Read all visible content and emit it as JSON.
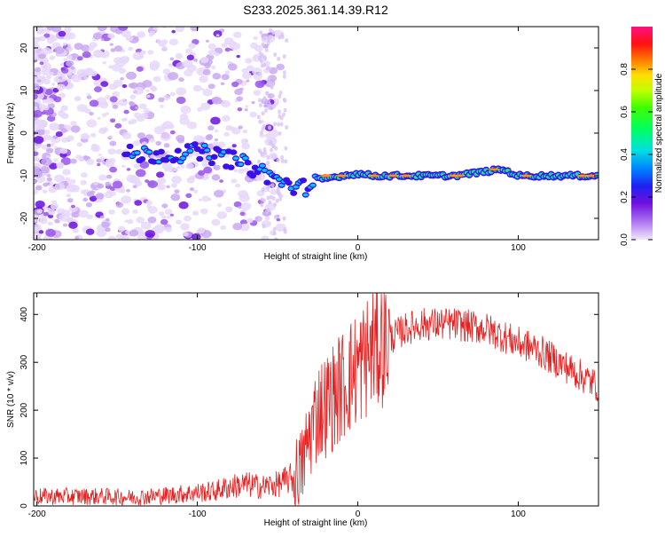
{
  "title": "S233.2025.361.14.39.R12",
  "colors": {
    "snr_line": "#e62020",
    "spec_low": "#d6c2f5",
    "spec_mid": "#7a1ee6",
    "axis": "#000000"
  },
  "chart_data": [
    {
      "type": "heatmap",
      "xlabel": "Height of straight line (km)",
      "ylabel": "Frequency (Hz)",
      "xlim": [
        -202,
        150
      ],
      "ylim": [
        -25,
        25
      ],
      "x_ticks": [
        -200,
        -100,
        0,
        100
      ],
      "x_tick_labels": [
        "-200",
        "-100",
        "0",
        "100"
      ],
      "y_ticks": [
        -20,
        -10,
        0,
        10,
        20
      ],
      "y_tick_labels": [
        "-20",
        "-10",
        "0",
        "10",
        "20"
      ],
      "ridge": {
        "x": [
          -140,
          -120,
          -100,
          -80,
          -60,
          -45,
          -35,
          -25,
          -10,
          0,
          10,
          30,
          60,
          80,
          90,
          100,
          110,
          130,
          150
        ],
        "y": [
          -5,
          -5,
          -4.5,
          -6,
          -9,
          -12,
          -13,
          -11,
          -10,
          -9.5,
          -10,
          -10,
          -10,
          -9,
          -8.5,
          -10,
          -10,
          -10,
          -10
        ]
      }
    },
    {
      "type": "line",
      "xlabel": "Height of straight line (km)",
      "ylabel": "SNR (10 * v/v)",
      "xlim": [
        -202,
        150
      ],
      "ylim": [
        0,
        445
      ],
      "x_ticks": [
        -200,
        -100,
        0,
        100
      ],
      "x_tick_labels": [
        "-200",
        "-100",
        "0",
        "100"
      ],
      "y_ticks": [
        0,
        100,
        200,
        300,
        400
      ],
      "y_tick_labels": [
        "0",
        "100",
        "200",
        "300",
        "400"
      ],
      "series": [
        {
          "name": "SNR",
          "x": [
            -202,
            -180,
            -160,
            -140,
            -120,
            -100,
            -90,
            -80,
            -70,
            -60,
            -50,
            -40,
            -35,
            -30,
            -25,
            -20,
            -15,
            -10,
            -5,
            0,
            10,
            20,
            30,
            40,
            60,
            80,
            100,
            110,
            120,
            130,
            140,
            150
          ],
          "y": [
            20,
            20,
            20,
            18,
            22,
            28,
            30,
            40,
            45,
            40,
            45,
            60,
            80,
            150,
            200,
            210,
            230,
            250,
            270,
            290,
            330,
            350,
            370,
            380,
            380,
            370,
            340,
            330,
            310,
            290,
            270,
            250
          ]
        }
      ]
    }
  ],
  "colorbar": {
    "label": "Normalized spectral amplitude",
    "ticks": [
      0.0,
      0.2,
      0.4,
      0.6,
      0.8
    ],
    "tick_labels": [
      "0.0",
      "0.2",
      "0.4",
      "0.6",
      "0.8"
    ]
  }
}
